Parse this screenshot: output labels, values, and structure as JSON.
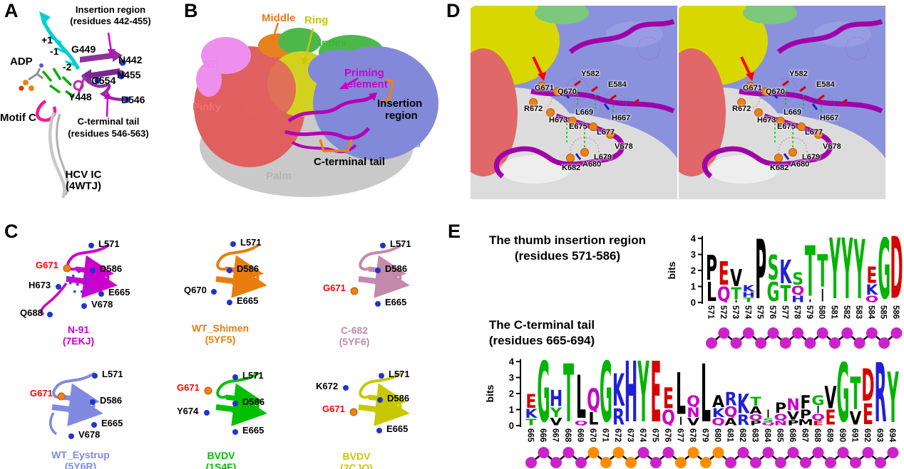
{
  "panels": {
    "a": "A",
    "b": "B",
    "c": "C",
    "d": "D",
    "e": "E"
  },
  "colors": {
    "circle_magenta": "#CC22CC",
    "circle_orange": "#FF8C00",
    "residue_highlight": "#FF0000",
    "logo_green": "#00B400",
    "logo_red": "#D80000",
    "logo_blue": "#2020D8",
    "logo_magenta": "#C800C8",
    "logo_black": "#000000"
  },
  "panelA": {
    "annotations": {
      "insertion_region_line1": "Insertion region",
      "insertion_region_line2": "(residues 442-455)",
      "plus1": "+1",
      "minus1": "-1",
      "minus2": "-2",
      "adp": "ADP",
      "motif_c": "Motif C",
      "cterm_line1": "C-terminal tail",
      "cterm_line2": "(residues 546-563)",
      "caption_line1": "HCV IC",
      "caption_line2": "(4WTJ)"
    },
    "residues": [
      "G449",
      "N442",
      "N455",
      "G554",
      "Y448",
      "D546"
    ]
  },
  "panelB": {
    "labels": [
      {
        "text": "Middle",
        "color": "#F07818"
      },
      {
        "text": "Ring",
        "color": "#C8C800"
      },
      {
        "text": "Index",
        "color": "#3CB43C"
      },
      {
        "text": "NE",
        "color": "#EE82EE"
      },
      {
        "text": "Pinky",
        "color": "#F07070"
      },
      {
        "text": "Priming",
        "color": "#CC00CC"
      },
      {
        "text": "element",
        "color": "#CC00CC"
      },
      {
        "text": "Insertion",
        "color": "#000000"
      },
      {
        "text": "region",
        "color": "#000000"
      },
      {
        "text": "Thumb",
        "color": "#8289E0"
      },
      {
        "text": "C-terminal tail",
        "color": "#000000"
      },
      {
        "text": "Palm",
        "color": "#B4B4B4"
      }
    ]
  },
  "panelC": {
    "cells": [
      {
        "name": "N-91",
        "pdb": "(7EKJ)",
        "color": "#CC00CC",
        "labels": [
          {
            "t": "L571"
          },
          {
            "t": "G671",
            "red": true
          },
          {
            "t": "D586"
          },
          {
            "t": "H673"
          },
          {
            "t": "E665"
          },
          {
            "t": "V678"
          },
          {
            "t": "Q688"
          }
        ]
      },
      {
        "name": "WT_Shimen",
        "pdb": "(5YF5)",
        "color": "#E87D0D",
        "labels": [
          {
            "t": "L571"
          },
          {
            "t": "D586"
          },
          {
            "t": "Q670"
          },
          {
            "t": "E665"
          }
        ]
      },
      {
        "name": "C-682",
        "pdb": "(5YF6)",
        "color": "#C489AC",
        "labels": [
          {
            "t": "L571"
          },
          {
            "t": "D586"
          },
          {
            "t": "G671",
            "red": true
          },
          {
            "t": "E665"
          }
        ]
      },
      {
        "name": "WT_Eystrup",
        "pdb": "(5Y6R)",
        "color": "#7F8AE0",
        "labels": [
          {
            "t": "L571"
          },
          {
            "t": "G671",
            "red": true
          },
          {
            "t": "D586"
          },
          {
            "t": "E665"
          },
          {
            "t": "V678"
          }
        ]
      },
      {
        "name": "BVDV",
        "pdb": "(1S4F)",
        "color": "#00C000",
        "labels": [
          {
            "t": "L571"
          },
          {
            "t": "G671",
            "red": true
          },
          {
            "t": "D586"
          },
          {
            "t": "Y674"
          },
          {
            "t": "E665"
          }
        ]
      },
      {
        "name": "BVDV",
        "pdb": "(2CJQ)",
        "color": "#C8C800",
        "labels": [
          {
            "t": "L571"
          },
          {
            "t": "K672"
          },
          {
            "t": "D586"
          },
          {
            "t": "G671",
            "red": true
          },
          {
            "t": "E665"
          }
        ]
      }
    ]
  },
  "panelD": {
    "residues": [
      "G671",
      "Q670",
      "Y582",
      "E584",
      "R672",
      "L669",
      "H667",
      "H673",
      "E675",
      "L677",
      "V678",
      "L679",
      "A680",
      "K682"
    ]
  },
  "panelE": {
    "title1_line1": "The thumb insertion region",
    "title1_line2": "(residues 571-586)",
    "title2_line1": "The C-terminal tail",
    "title2_line2": "(residues 665-694)"
  },
  "chart_data": [
    {
      "type": "sequence_logo",
      "title": "The thumb insertion region (residues 571-586)",
      "ylabel": "bits",
      "ylim": [
        0,
        4
      ],
      "yticks": [
        0,
        1,
        2,
        3,
        4
      ],
      "positions": [
        571,
        572,
        573,
        574,
        575,
        576,
        577,
        578,
        579,
        580,
        581,
        582,
        583,
        584,
        585,
        586
      ],
      "stacks": [
        [
          [
            "L",
            1.3
          ],
          [
            "P",
            1.7
          ]
        ],
        [
          [
            "Q",
            1.0
          ],
          [
            "E",
            1.6
          ]
        ],
        [
          [
            "I",
            0.15
          ],
          [
            "T",
            0.8
          ],
          [
            "V",
            1.15
          ]
        ],
        [
          [
            "T",
            0.3
          ],
          [
            "H",
            0.35
          ],
          [
            "K",
            0.45
          ]
        ],
        [
          [
            "P",
            4.0
          ]
        ],
        [
          [
            "G",
            1.3
          ],
          [
            "S",
            1.7
          ]
        ],
        [
          [
            "T",
            1.1
          ],
          [
            "K",
            1.6
          ]
        ],
        [
          [
            "H",
            0.45
          ],
          [
            "Q",
            0.6
          ],
          [
            "S",
            0.85
          ]
        ],
        [
          [
            "I",
            0.2
          ],
          [
            "T",
            3.4
          ]
        ],
        [
          [
            "I",
            0.85
          ],
          [
            "T",
            2.2
          ]
        ],
        [
          [
            "Y",
            4.1
          ]
        ],
        [
          [
            "Y",
            4.1
          ]
        ],
        [
          [
            "Y",
            4.0
          ]
        ],
        [
          [
            "Q",
            0.45
          ],
          [
            "K",
            0.7
          ],
          [
            "E",
            1.1
          ]
        ],
        [
          [
            "G",
            4.1
          ]
        ],
        [
          [
            "D",
            4.2
          ]
        ]
      ],
      "circles": [
        "magenta",
        "magenta",
        "magenta",
        "magenta",
        "magenta",
        "magenta",
        "magenta",
        "magenta",
        "magenta",
        "magenta",
        "magenta",
        "magenta",
        "magenta",
        "magenta",
        "magenta",
        "magenta"
      ]
    },
    {
      "type": "sequence_logo",
      "title": "The C-terminal tail (residues 665-694)",
      "ylabel": "bits",
      "ylim": [
        0,
        4
      ],
      "yticks": [
        0,
        1,
        2,
        3,
        4
      ],
      "positions": [
        665,
        666,
        667,
        668,
        669,
        670,
        671,
        672,
        673,
        674,
        675,
        676,
        677,
        678,
        679,
        680,
        681,
        682,
        683,
        684,
        685,
        686,
        687,
        688,
        689,
        690,
        691,
        692,
        693,
        694
      ],
      "stacks": [
        [
          [
            "T",
            0.45
          ],
          [
            "K",
            0.6
          ],
          [
            "E",
            0.95
          ]
        ],
        [
          [
            "G",
            4.1
          ]
        ],
        [
          [
            "V",
            0.5
          ],
          [
            "Y",
            0.65
          ],
          [
            "H",
            1.1
          ]
        ],
        [
          [
            "T",
            3.9
          ]
        ],
        [
          [
            "Q",
            0.3
          ],
          [
            "L",
            2.9
          ]
        ],
        [
          [
            "L",
            0.85
          ],
          [
            "Q",
            1.5
          ]
        ],
        [
          [
            "G",
            4.1
          ]
        ],
        [
          [
            "R",
            1.1
          ],
          [
            "K",
            2.2
          ]
        ],
        [
          [
            "H",
            4.1
          ]
        ],
        [
          [
            "Y",
            4.1
          ]
        ],
        [
          [
            "E",
            4.1
          ]
        ],
        [
          [
            "Q",
            1.0
          ],
          [
            "E",
            1.4
          ]
        ],
        [
          [
            "I",
            0.55
          ],
          [
            "L",
            2.8
          ]
        ],
        [
          [
            "V",
            0.5
          ],
          [
            "N",
            0.65
          ],
          [
            "Q",
            0.75
          ]
        ],
        [
          [
            "L",
            3.9
          ]
        ],
        [
          [
            "Q",
            0.5
          ],
          [
            "K",
            0.6
          ],
          [
            "A",
            0.8
          ]
        ],
        [
          [
            "A",
            0.5
          ],
          [
            "Q",
            0.7
          ],
          [
            "R",
            0.9
          ]
        ],
        [
          [
            "R",
            0.7
          ],
          [
            "K",
            1.3
          ]
        ],
        [
          [
            "P",
            0.3
          ],
          [
            "Q",
            0.4
          ],
          [
            "A",
            0.5
          ],
          [
            "T",
            0.6
          ]
        ],
        [
          [
            "Q",
            0.2
          ],
          [
            "S",
            0.25
          ],
          [
            "I",
            0.55
          ]
        ],
        [
          [
            "N",
            0.3
          ],
          [
            "Q",
            0.45
          ],
          [
            "P",
            0.7
          ]
        ],
        [
          [
            "P",
            0.35
          ],
          [
            "V",
            0.55
          ],
          [
            "N",
            0.8
          ]
        ],
        [
          [
            "M",
            0.4
          ],
          [
            "P",
            0.6
          ],
          [
            "F",
            0.9
          ]
        ],
        [
          [
            "E",
            0.3
          ],
          [
            "Q",
            0.45
          ],
          [
            "I",
            0.5
          ],
          [
            "G",
            0.65
          ]
        ],
        [
          [
            "E",
            1.0
          ],
          [
            "V",
            1.5
          ]
        ],
        [
          [
            "G",
            4.0
          ]
        ],
        [
          [
            "V",
            0.9
          ],
          [
            "T",
            2.2
          ]
        ],
        [
          [
            "E",
            1.4
          ],
          [
            "D",
            2.2
          ]
        ],
        [
          [
            "R",
            4.0
          ]
        ],
        [
          [
            "Y",
            3.4
          ]
        ]
      ],
      "circles": [
        "magenta",
        "magenta",
        "magenta",
        "magenta",
        "magenta",
        "orange",
        "orange",
        "orange",
        "orange",
        "magenta",
        "magenta",
        "magenta",
        "orange",
        "orange",
        "orange",
        "orange",
        "magenta",
        "magenta",
        "magenta",
        "magenta",
        "magenta",
        "magenta",
        "magenta",
        "magenta",
        "magenta",
        "magenta",
        "magenta",
        "magenta",
        "magenta",
        "magenta"
      ]
    }
  ]
}
